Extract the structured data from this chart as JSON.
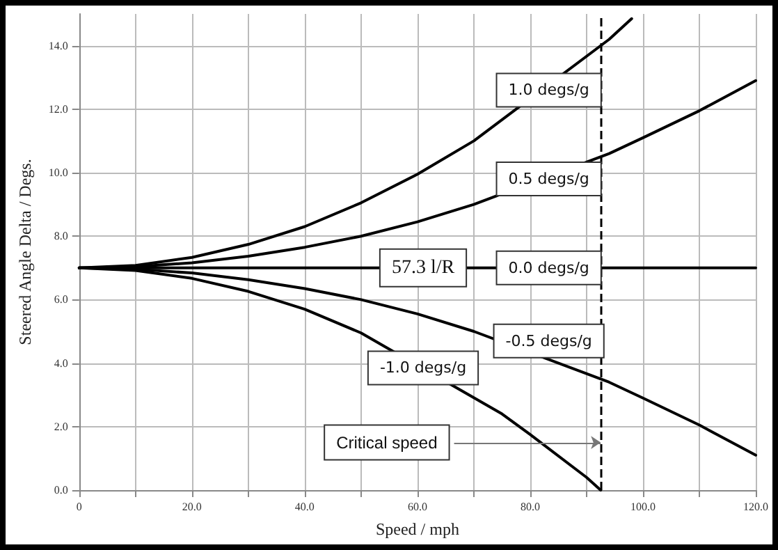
{
  "chart_data": {
    "type": "line",
    "xlabel": "Speed / mph",
    "ylabel": "Steered Angle Delta / Degs.",
    "xlim": [
      0,
      120
    ],
    "xticks": [
      0,
      {
        "value": 10,
        "label": null
      },
      {
        "value": 20,
        "label": "20.0"
      },
      {
        "value": 30,
        "label": null
      },
      {
        "value": 40,
        "label": "40.0"
      },
      {
        "value": 50,
        "label": null
      },
      {
        "value": 60,
        "label": "60.0"
      },
      {
        "value": 70,
        "label": null
      },
      {
        "value": 80,
        "label": "80.0"
      },
      {
        "value": 90,
        "label": null
      },
      {
        "value": 100,
        "label": "100.0"
      },
      {
        "value": 110,
        "label": null
      },
      {
        "value": 120,
        "label": "120.0"
      }
    ],
    "ylim": [
      0,
      15
    ],
    "yticks": [
      {
        "value": 0,
        "label": "0.0"
      },
      {
        "value": 2,
        "label": "2.0"
      },
      {
        "value": 4,
        "label": "4.0"
      },
      {
        "value": 6,
        "label": "6.0"
      },
      {
        "value": 8,
        "label": "8.0"
      },
      {
        "value": 10,
        "label": "10.0"
      },
      {
        "value": 12,
        "label": "12.0"
      },
      {
        "value": 14,
        "label": "14.0"
      }
    ],
    "grid": true,
    "marker": "none",
    "line_style": "solid",
    "legend": false,
    "series": [
      {
        "name": "1.0 degs/g",
        "color": "#000000",
        "x": [
          0,
          10,
          20,
          30,
          40,
          50,
          60,
          70,
          94,
          98
        ],
        "values": [
          7,
          7.08,
          7.33,
          7.74,
          8.3,
          9.05,
          9.95,
          11.0,
          14.2,
          14.85
        ]
      },
      {
        "name": "0.5 degs/g",
        "color": "#000000",
        "x": [
          0,
          10,
          20,
          30,
          40,
          50,
          60,
          70,
          94,
          100,
          110,
          120
        ],
        "values": [
          7,
          7.04,
          7.16,
          7.37,
          7.65,
          8.0,
          8.45,
          9.0,
          10.6,
          11.1,
          11.95,
          12.9
        ]
      },
      {
        "name": "0.0 degs/g",
        "color": "#000000",
        "x": [
          0,
          50,
          70,
          95,
          120
        ],
        "values": [
          7,
          7,
          7,
          7,
          7
        ]
      },
      {
        "name": "-0.5 degs/g",
        "color": "#000000",
        "x": [
          0,
          10,
          20,
          30,
          40,
          50,
          60,
          70,
          94,
          100,
          110,
          120
        ],
        "values": [
          7,
          6.96,
          6.84,
          6.63,
          6.35,
          6.0,
          5.55,
          5.0,
          3.4,
          2.9,
          2.05,
          1.1
        ]
      },
      {
        "name": "-1.0 degs/g",
        "color": "#000000",
        "x": [
          0,
          10,
          20,
          30,
          40,
          50,
          75,
          80,
          90,
          92.5
        ],
        "values": [
          7,
          6.92,
          6.67,
          6.26,
          5.7,
          4.95,
          2.4,
          1.75,
          0.4,
          0
        ]
      }
    ],
    "ref_lines": [
      {
        "axis": "x",
        "value": 92.5,
        "label": null,
        "color": "#000000",
        "line_style": "dashed"
      }
    ],
    "annotations": [
      {
        "text": "57.3 l/R",
        "x": 61,
        "y": 7
      },
      {
        "text": "Critical speed",
        "x": 92.5,
        "y": 1.5
      }
    ]
  }
}
